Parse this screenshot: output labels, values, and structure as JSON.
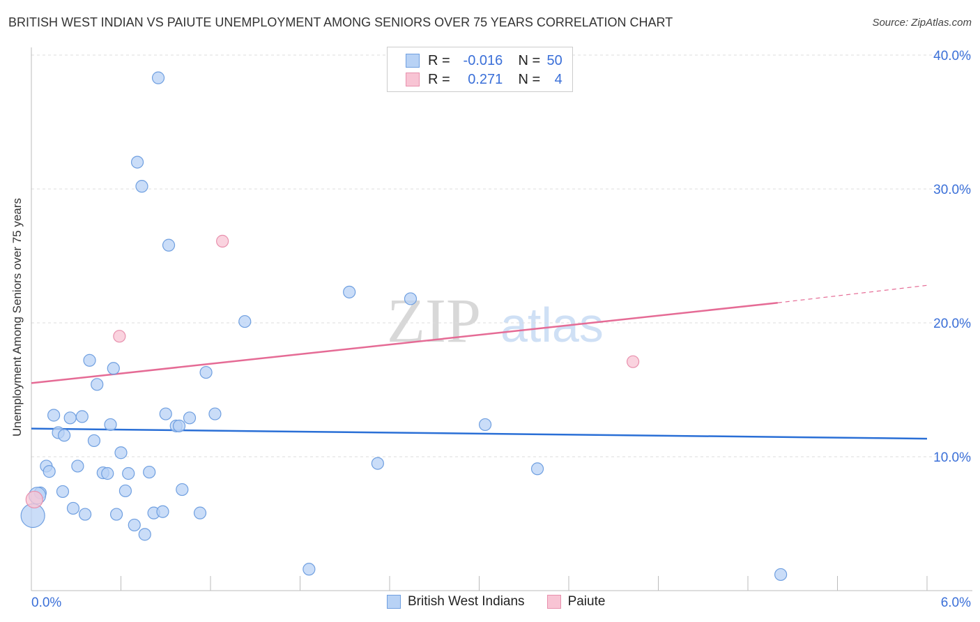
{
  "title": "BRITISH WEST INDIAN VS PAIUTE UNEMPLOYMENT AMONG SENIORS OVER 75 YEARS CORRELATION CHART",
  "source": "Source: ZipAtlas.com",
  "watermark": "ZIPatlas",
  "legend": {
    "rows": [
      {
        "r_label": "R =",
        "r_value": "-0.016",
        "n_label": "N =",
        "n_value": "50"
      },
      {
        "r_label": "R =",
        "r_value": "0.271",
        "n_label": "N =",
        "n_value": "4"
      }
    ]
  },
  "bottom_legend": [
    "British West Indians",
    "Paiute"
  ],
  "colors": {
    "blue_fill": "#b8d2f5",
    "blue_stroke": "#6f9fe0",
    "blue_line": "#2a6fd6",
    "pink_fill": "#f8c4d4",
    "pink_stroke": "#e890ad",
    "pink_line": "#e56b95",
    "axis_text": "#3a6fd8"
  },
  "chart_data": {
    "type": "scatter",
    "title": "BRITISH WEST INDIAN VS PAIUTE UNEMPLOYMENT AMONG SENIORS OVER 75 YEARS CORRELATION CHART",
    "xlabel": "",
    "ylabel": "Unemployment Among Seniors over 75 years",
    "xlim": [
      0,
      6
    ],
    "ylim": [
      0,
      40
    ],
    "x_tick_labels": [
      "0.0%",
      "6.0%"
    ],
    "y_ticks": [
      10,
      20,
      30,
      40
    ],
    "y_tick_labels": [
      "10.0%",
      "20.0%",
      "30.0%",
      "40.0%"
    ],
    "grid": true,
    "legend_placement": "top-center",
    "series": [
      {
        "name": "British West Indians",
        "points": [
          [
            0.85,
            38.3
          ],
          [
            0.71,
            32.0
          ],
          [
            0.74,
            30.2
          ],
          [
            0.92,
            25.8
          ],
          [
            2.13,
            22.3
          ],
          [
            2.54,
            21.8
          ],
          [
            1.43,
            20.1
          ],
          [
            0.39,
            17.2
          ],
          [
            0.55,
            16.6
          ],
          [
            1.17,
            16.3
          ],
          [
            0.44,
            15.4
          ],
          [
            0.15,
            13.1
          ],
          [
            0.26,
            12.9
          ],
          [
            0.34,
            13.0
          ],
          [
            0.9,
            13.2
          ],
          [
            1.23,
            13.2
          ],
          [
            1.06,
            12.9
          ],
          [
            0.53,
            12.4
          ],
          [
            0.97,
            12.3
          ],
          [
            0.99,
            12.3
          ],
          [
            3.04,
            12.4
          ],
          [
            0.18,
            11.8
          ],
          [
            0.22,
            11.6
          ],
          [
            0.42,
            11.2
          ],
          [
            0.6,
            10.3
          ],
          [
            0.1,
            9.3
          ],
          [
            0.12,
            8.9
          ],
          [
            0.31,
            9.3
          ],
          [
            2.32,
            9.5
          ],
          [
            3.39,
            9.1
          ],
          [
            0.48,
            8.8
          ],
          [
            0.51,
            8.75
          ],
          [
            0.65,
            8.75
          ],
          [
            0.79,
            8.85
          ],
          [
            0.06,
            7.3
          ],
          [
            0.21,
            7.4
          ],
          [
            0.63,
            7.45
          ],
          [
            1.01,
            7.55
          ],
          [
            0.28,
            6.15
          ],
          [
            0.36,
            5.7
          ],
          [
            0.57,
            5.7
          ],
          [
            0.82,
            5.8
          ],
          [
            0.88,
            5.9
          ],
          [
            1.13,
            5.8
          ],
          [
            0.01,
            5.6
          ],
          [
            0.69,
            4.9
          ],
          [
            0.76,
            4.2
          ],
          [
            1.86,
            1.6
          ],
          [
            5.02,
            1.2
          ],
          [
            0.04,
            7.1
          ]
        ],
        "trend": {
          "x": [
            0,
            6
          ],
          "y": [
            12.1,
            11.35
          ]
        }
      },
      {
        "name": "Paiute",
        "points": [
          [
            1.28,
            26.1
          ],
          [
            0.59,
            19.0
          ],
          [
            4.03,
            17.1
          ],
          [
            0.02,
            6.8
          ]
        ],
        "trend": {
          "x": [
            0,
            5.0
          ],
          "y": [
            15.5,
            21.5
          ],
          "dashed_extension": {
            "x": [
              5.0,
              6
            ],
            "y": [
              21.5,
              22.8
            ]
          }
        }
      }
    ]
  }
}
